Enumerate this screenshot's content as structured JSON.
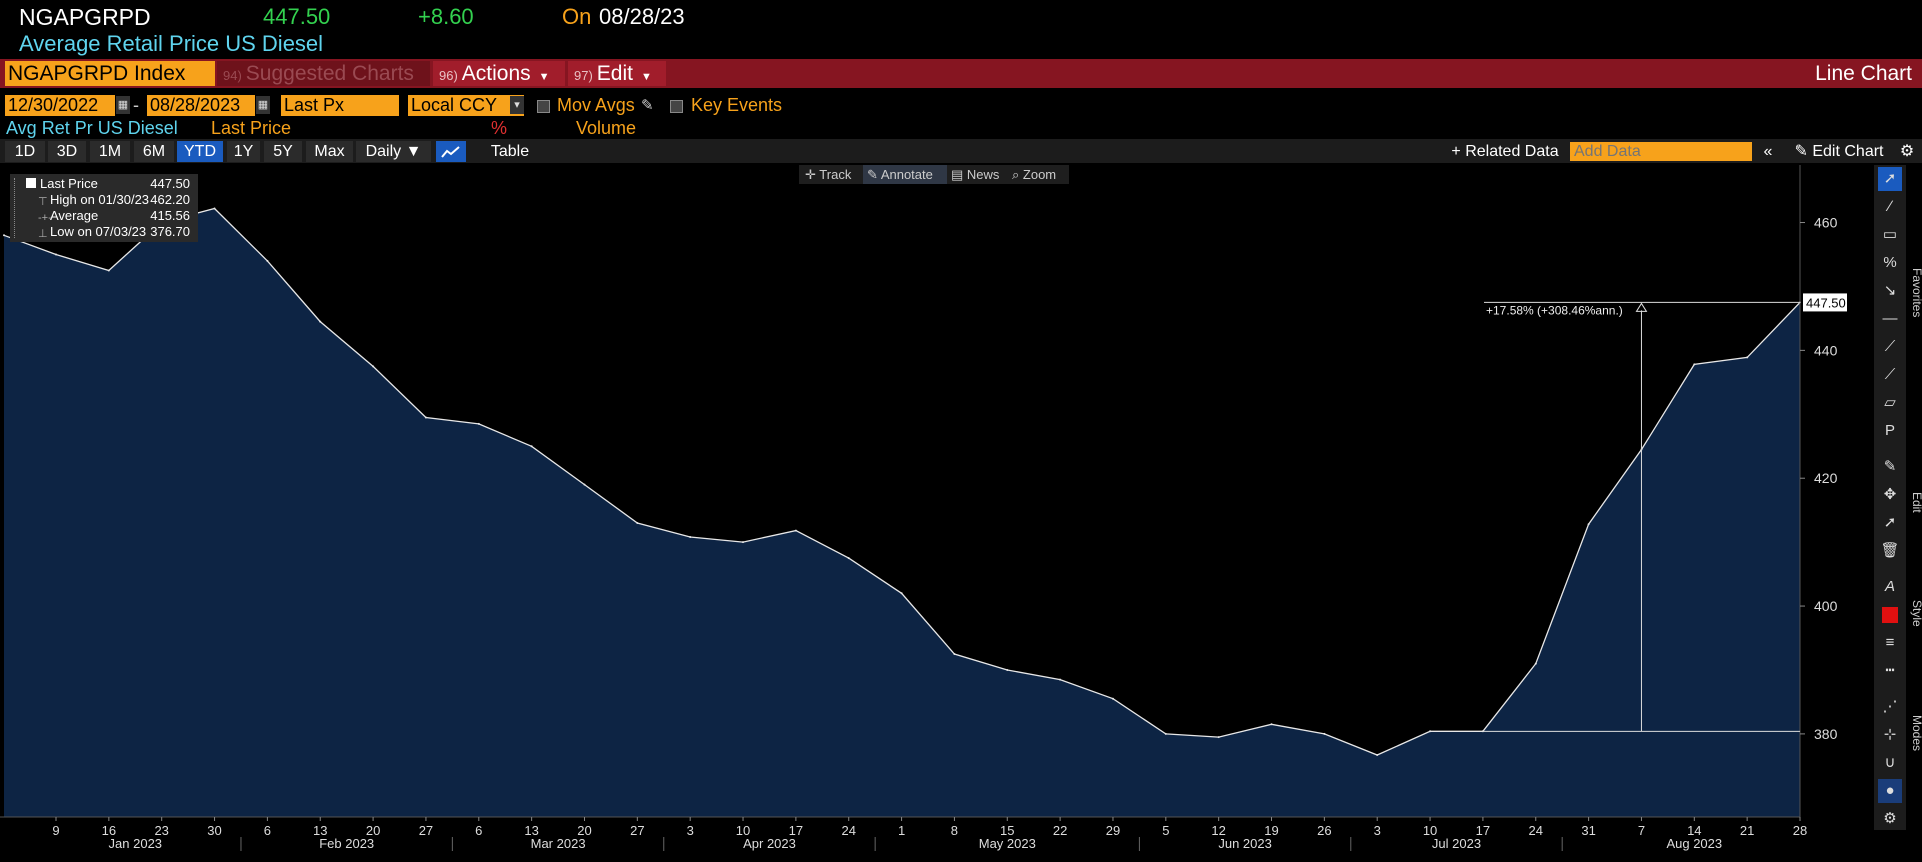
{
  "header": {
    "ticker": "NGAPGRPD",
    "price": "447.50",
    "change": "+8.60",
    "on_label": "On",
    "date": "08/28/23",
    "description": "Average Retail Price US Diesel"
  },
  "menubar": {
    "security": "NGAPGRPD Index",
    "suggested_num": "94)",
    "suggested_label": "Suggested Charts",
    "actions_num": "96)",
    "actions_label": "Actions",
    "edit_num": "97)",
    "edit_label": "Edit",
    "chart_type": "Line Chart"
  },
  "controls": {
    "start_date": "12/30/2022",
    "end_date": "08/28/2023",
    "field": "Last Px",
    "currency": "Local CCY",
    "mov_avgs": "Mov Avgs",
    "key_events": "Key Events"
  },
  "legendbar": {
    "series": "Avg Ret Pr US Diesel",
    "last_price": "Last Price",
    "pct": "%",
    "volume": "Volume"
  },
  "ranges": [
    "1D",
    "3D",
    "1M",
    "6M",
    "YTD",
    "1Y",
    "5Y",
    "Max"
  ],
  "selected_range": "YTD",
  "periodicity": "Daily",
  "table_label": "Table",
  "related_data": "Related Data",
  "add_data_placeholder": "Add Data",
  "edit_chart": "Edit Chart",
  "chart_tools": [
    "Track",
    "Annotate",
    "News",
    "Zoom"
  ],
  "legend_box": {
    "last_price_label": "Last Price",
    "last_price_value": "447.50",
    "high_label": "High on 01/30/23",
    "high_value": "462.20",
    "average_label": "Average",
    "average_value": "415.56",
    "low_label": "Low on 07/03/23",
    "low_value": "376.70"
  },
  "side_tabs": [
    "Favorites",
    "Edit",
    "Style",
    "Modes"
  ],
  "colors": {
    "fill": "#0d2444",
    "line": "#e8e8e8",
    "accent": "#f7a21b",
    "menubar": "#861521"
  },
  "chart_data": {
    "type": "area",
    "x": [
      "2023-01-02",
      "2023-01-09",
      "2023-01-16",
      "2023-01-23",
      "2023-01-30",
      "2023-02-06",
      "2023-02-13",
      "2023-02-20",
      "2023-02-27",
      "2023-03-06",
      "2023-03-13",
      "2023-03-20",
      "2023-03-27",
      "2023-04-03",
      "2023-04-10",
      "2023-04-17",
      "2023-04-24",
      "2023-05-01",
      "2023-05-08",
      "2023-05-15",
      "2023-05-22",
      "2023-05-29",
      "2023-06-05",
      "2023-06-12",
      "2023-06-19",
      "2023-06-26",
      "2023-07-03",
      "2023-07-10",
      "2023-07-17",
      "2023-07-24",
      "2023-07-31",
      "2023-08-07",
      "2023-08-14",
      "2023-08-21",
      "2023-08-28"
    ],
    "values": [
      458.0,
      455.0,
      452.5,
      460.0,
      462.2,
      454.0,
      444.5,
      437.5,
      429.5,
      428.5,
      425.0,
      419.0,
      413.0,
      410.8,
      410.0,
      411.8,
      407.5,
      402.0,
      392.5,
      390.0,
      388.5,
      385.5,
      380.0,
      379.5,
      381.5,
      380.0,
      376.7,
      380.4,
      380.4,
      391.0,
      412.8,
      424.5,
      437.8,
      438.9,
      447.5
    ],
    "ylim": [
      367,
      469
    ],
    "yticks": [
      "380",
      "400",
      "420",
      "440",
      "460"
    ],
    "xtick_labels": [
      "9",
      "16",
      "23",
      "30",
      "6",
      "13",
      "20",
      "27",
      "6",
      "13",
      "20",
      "27",
      "3",
      "10",
      "17",
      "24",
      "1",
      "8",
      "15",
      "22",
      "29",
      "5",
      "12",
      "19",
      "26",
      "3",
      "10",
      "17",
      "24",
      "31",
      "7",
      "14",
      "21",
      "28"
    ],
    "months": [
      "Jan 2023",
      "Feb 2023",
      "Mar 2023",
      "Apr 2023",
      "May 2023",
      "Jun 2023",
      "Jul 2023",
      "Aug 2023"
    ],
    "last_value_label": "447.50",
    "annotation": "+17.58% (+308.46%ann.)"
  }
}
